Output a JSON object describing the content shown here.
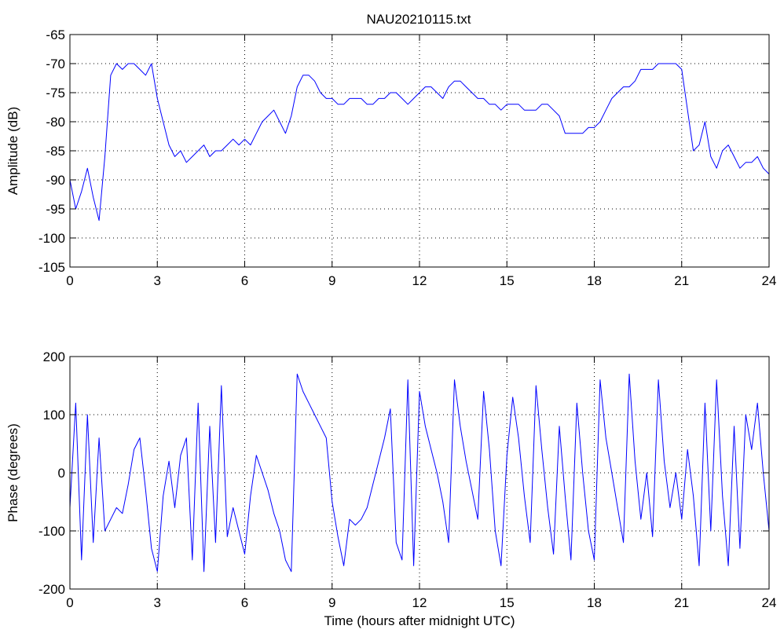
{
  "title": "NAU20210115.txt",
  "chart_data": [
    {
      "type": "line",
      "title": "NAU20210115.txt",
      "xlabel": "",
      "ylabel": "Amplitude (dB)",
      "xlim": [
        0,
        24
      ],
      "ylim": [
        -105,
        -65
      ],
      "x_ticks": [
        0,
        3,
        6,
        9,
        12,
        15,
        18,
        21,
        24
      ],
      "y_ticks": [
        -105,
        -100,
        -95,
        -90,
        -85,
        -80,
        -75,
        -70,
        -65
      ],
      "grid": true,
      "series": [
        {
          "color": "#0000ff",
          "x": [
            0,
            0.2,
            0.4,
            0.6,
            0.8,
            1.0,
            1.2,
            1.4,
            1.6,
            1.8,
            2.0,
            2.2,
            2.4,
            2.6,
            2.8,
            3.0,
            3.2,
            3.4,
            3.6,
            3.8,
            4.0,
            4.2,
            4.4,
            4.6,
            4.8,
            5.0,
            5.2,
            5.4,
            5.6,
            5.8,
            6.0,
            6.2,
            6.4,
            6.6,
            6.8,
            7.0,
            7.2,
            7.4,
            7.6,
            7.8,
            8.0,
            8.2,
            8.4,
            8.6,
            8.8,
            9.0,
            9.2,
            9.4,
            9.6,
            9.8,
            10.0,
            10.2,
            10.4,
            10.6,
            10.8,
            11.0,
            11.2,
            11.4,
            11.6,
            11.8,
            12.0,
            12.2,
            12.4,
            12.6,
            12.8,
            13.0,
            13.2,
            13.4,
            13.6,
            13.8,
            14.0,
            14.2,
            14.4,
            14.6,
            14.8,
            15.0,
            15.2,
            15.4,
            15.6,
            15.8,
            16.0,
            16.2,
            16.4,
            16.6,
            16.8,
            17.0,
            17.2,
            17.4,
            17.6,
            17.8,
            18.0,
            18.2,
            18.4,
            18.6,
            18.8,
            19.0,
            19.2,
            19.4,
            19.6,
            19.8,
            20.0,
            20.2,
            20.4,
            20.6,
            20.8,
            21.0,
            21.2,
            21.4,
            21.6,
            21.8,
            22.0,
            22.2,
            22.4,
            22.6,
            22.8,
            23.0,
            23.2,
            23.4,
            23.6,
            23.8,
            24.0
          ],
          "y": [
            -90,
            -95,
            -92,
            -88,
            -93,
            -97,
            -86,
            -72,
            -70,
            -71,
            -70,
            -70,
            -71,
            -72,
            -70,
            -76,
            -80,
            -84,
            -86,
            -85,
            -87,
            -86,
            -85,
            -84,
            -86,
            -85,
            -85,
            -84,
            -83,
            -84,
            -83,
            -84,
            -82,
            -80,
            -79,
            -78,
            -80,
            -82,
            -79,
            -74,
            -72,
            -72,
            -73,
            -75,
            -76,
            -76,
            -77,
            -77,
            -76,
            -76,
            -76,
            -77,
            -77,
            -76,
            -76,
            -75,
            -75,
            -76,
            -77,
            -76,
            -75,
            -74,
            -74,
            -75,
            -76,
            -74,
            -73,
            -73,
            -74,
            -75,
            -76,
            -76,
            -77,
            -77,
            -78,
            -77,
            -77,
            -77,
            -78,
            -78,
            -78,
            -77,
            -77,
            -78,
            -79,
            -82,
            -82,
            -82,
            -82,
            -81,
            -81,
            -80,
            -78,
            -76,
            -75,
            -74,
            -74,
            -73,
            -71,
            -71,
            -71,
            -70,
            -70,
            -70,
            -70,
            -71,
            -78,
            -85,
            -84,
            -80,
            -86,
            -88,
            -85,
            -84,
            -86,
            -88,
            -87,
            -87,
            -86,
            -88,
            -89
          ]
        }
      ]
    },
    {
      "type": "line",
      "title": "",
      "xlabel": "Time (hours after midnight UTC)",
      "ylabel": "Phase (degrees)",
      "xlim": [
        0,
        24
      ],
      "ylim": [
        -200,
        200
      ],
      "x_ticks": [
        0,
        3,
        6,
        9,
        12,
        15,
        18,
        21,
        24
      ],
      "y_ticks": [
        -200,
        -100,
        0,
        100,
        200
      ],
      "grid": true,
      "series": [
        {
          "color": "#0000ff",
          "x": [
            0,
            0.2,
            0.4,
            0.6,
            0.8,
            1.0,
            1.2,
            1.4,
            1.6,
            1.8,
            2.0,
            2.2,
            2.4,
            2.6,
            2.8,
            3.0,
            3.2,
            3.4,
            3.6,
            3.8,
            4.0,
            4.2,
            4.4,
            4.6,
            4.8,
            5.0,
            5.2,
            5.4,
            5.6,
            5.8,
            6.0,
            6.2,
            6.4,
            6.6,
            6.8,
            7.0,
            7.2,
            7.4,
            7.6,
            7.8,
            8.0,
            8.2,
            8.4,
            8.6,
            8.8,
            9.0,
            9.2,
            9.4,
            9.6,
            9.8,
            10.0,
            10.2,
            10.4,
            10.6,
            10.8,
            11.0,
            11.2,
            11.4,
            11.6,
            11.8,
            12.0,
            12.2,
            12.4,
            12.6,
            12.8,
            13.0,
            13.2,
            13.4,
            13.6,
            13.8,
            14.0,
            14.2,
            14.4,
            14.6,
            14.8,
            15.0,
            15.2,
            15.4,
            15.6,
            15.8,
            16.0,
            16.2,
            16.4,
            16.6,
            16.8,
            17.0,
            17.2,
            17.4,
            17.6,
            17.8,
            18.0,
            18.2,
            18.4,
            18.6,
            18.8,
            19.0,
            19.2,
            19.4,
            19.6,
            19.8,
            20.0,
            20.2,
            20.4,
            20.6,
            20.8,
            21.0,
            21.2,
            21.4,
            21.6,
            21.8,
            22.0,
            22.2,
            22.4,
            22.6,
            22.8,
            23.0,
            23.2,
            23.4,
            23.6,
            23.8,
            24.0
          ],
          "y": [
            -60,
            120,
            -150,
            100,
            -120,
            60,
            -100,
            -80,
            -60,
            -70,
            -20,
            40,
            60,
            -30,
            -130,
            -170,
            -40,
            20,
            -60,
            30,
            60,
            -150,
            120,
            -170,
            80,
            -120,
            150,
            -110,
            -60,
            -100,
            -140,
            -40,
            30,
            0,
            -30,
            -70,
            -100,
            -150,
            -170,
            170,
            140,
            120,
            100,
            80,
            60,
            -50,
            -110,
            -160,
            -80,
            -90,
            -80,
            -60,
            -20,
            20,
            60,
            110,
            -120,
            -150,
            160,
            -160,
            140,
            80,
            40,
            0,
            -50,
            -120,
            160,
            80,
            20,
            -30,
            -80,
            140,
            40,
            -100,
            -160,
            30,
            130,
            60,
            -40,
            -120,
            150,
            40,
            -60,
            -140,
            80,
            -40,
            -150,
            120,
            0,
            -100,
            -150,
            160,
            60,
            0,
            -60,
            -120,
            170,
            20,
            -80,
            0,
            -110,
            160,
            20,
            -60,
            0,
            -80,
            40,
            -40,
            -160,
            120,
            -100,
            160,
            -40,
            -160,
            80,
            -130,
            100,
            40,
            120,
            0,
            -100
          ]
        }
      ]
    }
  ]
}
